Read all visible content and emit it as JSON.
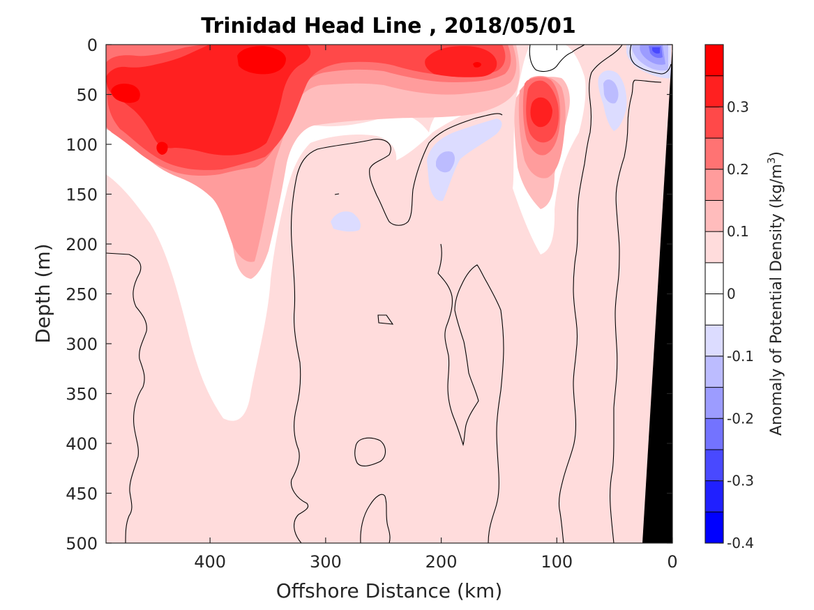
{
  "chart_data": {
    "type": "heatmap",
    "title": "Trinidad Head Line , 2018/05/01",
    "xlabel": "Offshore Distance (km)",
    "ylabel": "Depth (m)",
    "xlim": [
      490,
      0
    ],
    "ylim": [
      0,
      500
    ],
    "x_ticks": [
      400,
      300,
      200,
      100,
      0
    ],
    "x_tick_labels": [
      "400",
      "300",
      "200",
      "100",
      "0"
    ],
    "y_ticks": [
      0,
      50,
      100,
      150,
      200,
      250,
      300,
      350,
      400,
      450,
      500
    ],
    "y_tick_labels": [
      "0",
      "50",
      "100",
      "150",
      "200",
      "250",
      "300",
      "350",
      "400",
      "450",
      "500"
    ],
    "colorbar": {
      "label_main": "Anomaly of Potential Density (kg/m",
      "label_sup": "3",
      "label_end": ")",
      "range": [
        -0.4,
        0.4
      ],
      "levels": [
        -0.4,
        -0.35,
        -0.3,
        -0.25,
        -0.2,
        -0.15,
        -0.1,
        -0.05,
        0,
        0.05,
        0.1,
        0.15,
        0.2,
        0.25,
        0.3,
        0.35,
        0.4
      ],
      "colors": [
        "#0000ff",
        "#2020ff",
        "#4949ff",
        "#7373ff",
        "#9c9cff",
        "#bcbcff",
        "#dcdcff",
        "#ffffff",
        "#ffffff",
        "#ffdcdc",
        "#ffbcbc",
        "#ff9c9c",
        "#ff7373",
        "#ff4949",
        "#ff2020",
        "#ff0000"
      ],
      "tick_values": [
        0.3,
        0.2,
        0.1,
        0,
        -0.1,
        -0.2,
        -0.3,
        -0.4
      ],
      "tick_labels": [
        "0.3",
        "0.2",
        "0.1",
        "0",
        "-0.1",
        "-0.2",
        "-0.3",
        "-0.4"
      ]
    },
    "zero_contour_color": "#000000",
    "land_mask_color": "#000000",
    "features": [
      {
        "name": "surface warm-anomaly core",
        "x": [
          480,
          150
        ],
        "y": [
          0,
          100
        ],
        "value": 0.35
      },
      {
        "name": "subsurface positive tongue",
        "x": [
          420,
          320
        ],
        "y": [
          100,
          380
        ],
        "value": 0.1
      },
      {
        "name": "negative patch near 200 km",
        "x": [
          215,
          150
        ],
        "y": [
          80,
          160
        ],
        "value": -0.1
      },
      {
        "name": "nearshore positive core",
        "x": [
          130,
          90
        ],
        "y": [
          50,
          130
        ],
        "value": 0.3
      },
      {
        "name": "nearshore negative surface",
        "x": [
          45,
          25
        ],
        "y": [
          0,
          40
        ],
        "value": -0.25
      }
    ]
  }
}
